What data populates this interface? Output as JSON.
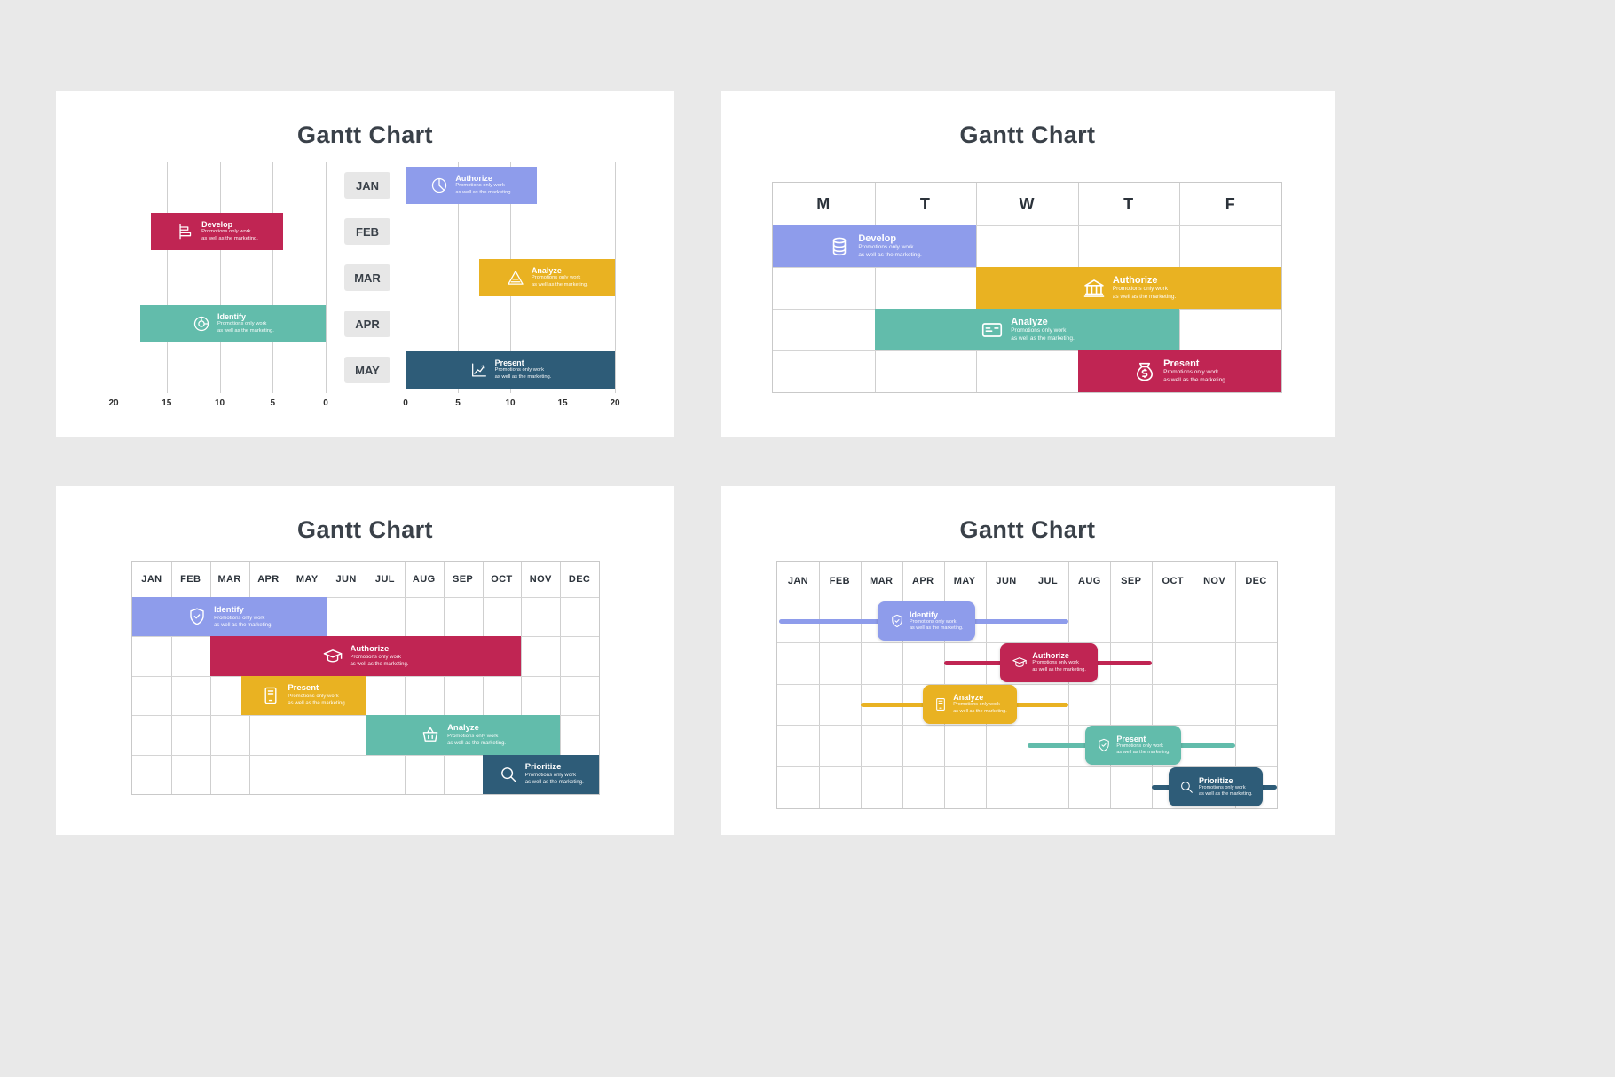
{
  "tagline": "Promotions only work as well as the marketing.",
  "tagline_lines": [
    "Promotions only work",
    "as well as the marketing."
  ],
  "colors": {
    "purple": "#8e9ceb",
    "red": "#c02553",
    "yellow": "#e9b222",
    "teal": "#62bcab",
    "navy": "#2e5c78",
    "page_background": "#e9e9e9",
    "card_background": "#ffffff",
    "grid_line": "#cfcfcf",
    "month_pill": "#e7e7e7",
    "heading_text": "#3a4149"
  },
  "chart_data": [
    {
      "type": "gantt-bar",
      "variant": "mirrored-axes",
      "title": "Gantt Chart",
      "months": [
        "JAN",
        "FEB",
        "MAR",
        "APR",
        "MAY"
      ],
      "left_axis_ticks": [
        "20",
        "15",
        "10",
        "5",
        "0"
      ],
      "right_axis_ticks": [
        "0",
        "5",
        "10",
        "15",
        "20"
      ],
      "axis_max": 20,
      "tasks": [
        {
          "name": "Authorize",
          "row": 0,
          "side": "right",
          "start": 0,
          "end": 12.5,
          "color": "purple",
          "icon": "pie-chart"
        },
        {
          "name": "Develop",
          "row": 1,
          "side": "left",
          "start": 4,
          "end": 16.5,
          "color": "red",
          "icon": "bar-chart"
        },
        {
          "name": "Analyze",
          "row": 2,
          "side": "right",
          "start": 7,
          "end": 20,
          "color": "yellow",
          "icon": "pyramid"
        },
        {
          "name": "Identify",
          "row": 3,
          "side": "left",
          "start": 0,
          "end": 17.5,
          "color": "teal",
          "icon": "donut"
        },
        {
          "name": "Present",
          "row": 4,
          "side": "right",
          "start": 0,
          "end": 20,
          "color": "navy",
          "icon": "line-chart"
        }
      ]
    },
    {
      "type": "gantt-bar",
      "variant": "weekday-table",
      "title": "Gantt Chart",
      "columns": [
        "M",
        "T",
        "W",
        "T",
        "F"
      ],
      "tasks": [
        {
          "name": "Develop",
          "row": 0,
          "start": 0,
          "span": 2,
          "color": "purple",
          "icon": "coins"
        },
        {
          "name": "Authorize",
          "row": 1,
          "start": 2,
          "span": 3,
          "color": "yellow",
          "icon": "bank"
        },
        {
          "name": "Analyze",
          "row": 2,
          "start": 1,
          "span": 3,
          "color": "teal",
          "icon": "id-card"
        },
        {
          "name": "Present",
          "row": 3,
          "start": 3,
          "span": 2,
          "color": "red",
          "icon": "money-bag"
        }
      ]
    },
    {
      "type": "gantt-bar",
      "variant": "monthly-table",
      "title": "Gantt Chart",
      "columns": [
        "JAN",
        "FEB",
        "MAR",
        "APR",
        "MAY",
        "JUN",
        "JUL",
        "AUG",
        "SEP",
        "OCT",
        "NOV",
        "DEC"
      ],
      "tasks": [
        {
          "name": "Identify",
          "row": 0,
          "start": 0,
          "span": 5,
          "color": "purple",
          "icon": "shield"
        },
        {
          "name": "Authorize",
          "row": 1,
          "start": 2,
          "span": 8,
          "color": "red",
          "icon": "grad-cap"
        },
        {
          "name": "Present",
          "row": 2,
          "start": 2.8,
          "span": 3.2,
          "color": "yellow",
          "icon": "tablet"
        },
        {
          "name": "Analyze",
          "row": 3,
          "start": 6,
          "span": 5,
          "color": "teal",
          "icon": "basket"
        },
        {
          "name": "Prioritize",
          "row": 4,
          "start": 9,
          "span": 3,
          "color": "navy",
          "icon": "magnifier"
        }
      ]
    },
    {
      "type": "gantt-bar",
      "variant": "monthly-milestone-cards",
      "title": "Gantt Chart",
      "columns": [
        "JAN",
        "FEB",
        "MAR",
        "APR",
        "MAY",
        "JUN",
        "JUL",
        "AUG",
        "SEP",
        "OCT",
        "NOV",
        "DEC"
      ],
      "tasks": [
        {
          "name": "Identify",
          "row": 0,
          "line_start": 0.05,
          "line_end": 7,
          "box_start": 2.4,
          "box_end": 4.75,
          "color": "purple",
          "icon": "shield"
        },
        {
          "name": "Authorize",
          "row": 1,
          "line_start": 4,
          "line_end": 9,
          "box_start": 5.35,
          "box_end": 7.7,
          "color": "red",
          "icon": "grad-cap"
        },
        {
          "name": "Analyze",
          "row": 2,
          "line_start": 2,
          "line_end": 7,
          "box_start": 3.5,
          "box_end": 5.75,
          "color": "yellow",
          "icon": "tablet"
        },
        {
          "name": "Present",
          "row": 3,
          "line_start": 6,
          "line_end": 11,
          "box_start": 7.4,
          "box_end": 9.7,
          "color": "teal",
          "icon": "shield-check"
        },
        {
          "name": "Prioritize",
          "row": 4,
          "line_start": 9,
          "line_end": 12,
          "box_start": 9.4,
          "box_end": 11.65,
          "color": "navy",
          "icon": "magnifier"
        }
      ]
    }
  ]
}
